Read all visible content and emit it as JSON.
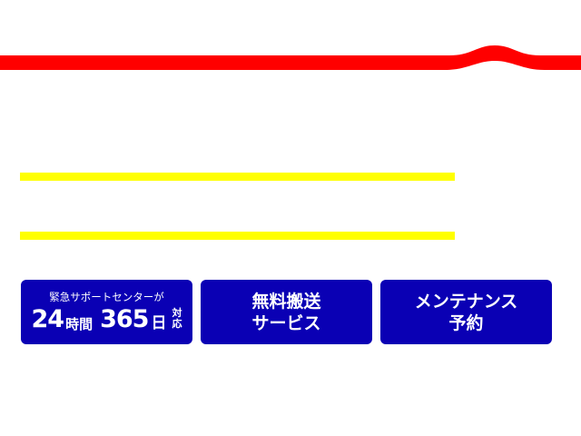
{
  "colors": {
    "ribbon": "#ff0000",
    "highlight_bar": "#ffff00",
    "button": "#0a00b4",
    "button_text": "#ffffff"
  },
  "buttons": [
    {
      "small": "緊急サポートセンターが",
      "hours": "24",
      "hours_unit": "時間",
      "days": "365",
      "days_unit": "日",
      "suffix_1": "対",
      "suffix_2": "応"
    },
    {
      "line1": "無料搬送",
      "line2": "サービス"
    },
    {
      "line1": "メンテナンス",
      "line2": "予約"
    }
  ]
}
